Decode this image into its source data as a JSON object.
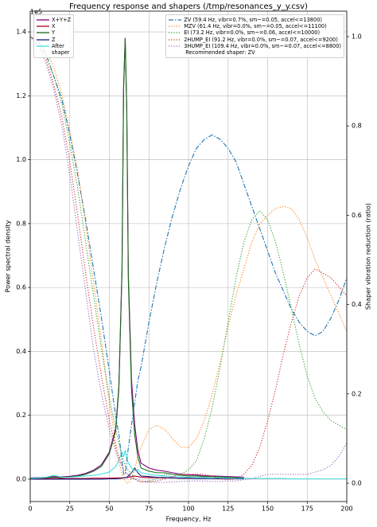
{
  "chart_data": {
    "type": "line",
    "title": "Frequency response and shapers (/tmp/resonances_y_y.csv)",
    "xlabel": "Frequency, Hz",
    "ylabel": "Power spectral density",
    "y2label": "Shaper vibration reduction (ratio)",
    "y_offset_label": "1e5",
    "recommended": "Recommended shaper: ZV",
    "legend": "upper left",
    "legend2": "upper right",
    "grid": true,
    "xlim": [
      0,
      200
    ],
    "xticks": [
      0,
      25,
      50,
      75,
      100,
      125,
      150,
      175,
      200
    ],
    "ylim": [
      -0.07,
      1.465
    ],
    "yticks": [
      {
        "value": 0,
        "label": "0.0"
      },
      0.2,
      0.4,
      0.6,
      0.8,
      {
        "value": 1,
        "label": "1.0"
      },
      1.2,
      1.4
    ],
    "y2lim": [
      -0.041,
      1.057
    ],
    "y2ticks": [
      {
        "value": 0,
        "label": "0.0"
      },
      0.2,
      0.4,
      0.6,
      0.8,
      {
        "value": 1,
        "label": "1.0"
      }
    ],
    "x": [
      0,
      5,
      10,
      15,
      20,
      25,
      30,
      35,
      40,
      45,
      50,
      54,
      56,
      58,
      59,
      60,
      61,
      62,
      64,
      66,
      68,
      70,
      75,
      80,
      85,
      90,
      95,
      100,
      105,
      110,
      115,
      120,
      125,
      130,
      135,
      140,
      145,
      150,
      155,
      160,
      165,
      170,
      175,
      180,
      185,
      190,
      195,
      200
    ],
    "series": [
      {
        "name": "X+Y+Z",
        "color": "#800080",
        "linestyle": "solid",
        "axis": "y",
        "values": [
          0.004,
          0.005,
          0.006,
          0.008,
          0.007,
          0.009,
          0.012,
          0.018,
          0.028,
          0.045,
          0.085,
          0.16,
          0.29,
          0.66,
          1.23,
          1.38,
          1.16,
          0.64,
          0.31,
          0.17,
          0.09,
          0.05,
          0.035,
          0.028,
          0.025,
          0.02,
          0.016,
          0.014,
          0.013,
          0.011,
          0.01,
          0.009,
          0.008,
          0.007,
          0.006,
          null,
          null,
          null,
          null,
          null,
          null,
          null,
          null,
          null,
          null,
          null,
          null,
          null
        ]
      },
      {
        "name": "X",
        "color": "#b00020",
        "linestyle": "solid",
        "axis": "y",
        "values": [
          0.001,
          0.001,
          0.002,
          0.002,
          0.002,
          0.002,
          0.002,
          0.002,
          0.003,
          0.003,
          0.003,
          0.004,
          0.004,
          0.004,
          0.005,
          0.005,
          0.005,
          0.006,
          0.008,
          0.01,
          0.008,
          0.006,
          0.005,
          0.005,
          0.004,
          0.004,
          0.003,
          0.003,
          0.003,
          0.003,
          0.002,
          0.002,
          0.002,
          0.002,
          0.002,
          null,
          null,
          null,
          null,
          null,
          null,
          null,
          null,
          null,
          null,
          null,
          null,
          null
        ]
      },
      {
        "name": "Y",
        "color": "#1a6b1a",
        "linestyle": "solid",
        "axis": "y",
        "values": [
          0.003,
          0.004,
          0.005,
          0.006,
          0.005,
          0.007,
          0.01,
          0.015,
          0.025,
          0.04,
          0.08,
          0.15,
          0.28,
          0.65,
          1.22,
          1.38,
          1.15,
          0.62,
          0.28,
          0.14,
          0.07,
          0.035,
          0.025,
          0.02,
          0.02,
          0.015,
          0.012,
          0.01,
          0.01,
          0.008,
          0.008,
          0.007,
          0.006,
          0.005,
          0.004,
          null,
          null,
          null,
          null,
          null,
          null,
          null,
          null,
          null,
          null,
          null,
          null,
          null
        ]
      },
      {
        "name": "Z",
        "color": "#1a1a80",
        "linestyle": "solid",
        "axis": "y",
        "values": [
          0,
          0,
          0,
          0,
          0,
          0,
          0,
          0,
          0,
          0,
          0.001,
          0.001,
          0.002,
          0.003,
          0.004,
          0.005,
          0.006,
          0.01,
          0.02,
          0.035,
          0.02,
          0.01,
          0.008,
          0.006,
          0.005,
          0.004,
          0.003,
          0.003,
          0.002,
          0.002,
          0.002,
          0.001,
          0.001,
          0.001,
          0.001,
          null,
          null,
          null,
          null,
          null,
          null,
          null,
          null,
          null,
          null,
          null,
          null,
          null
        ]
      },
      {
        "name": "After\nshaper",
        "color": "#40e0e0",
        "linestyle": "solid",
        "axis": "y",
        "values": [
          0.002,
          0.004,
          0.006,
          0.012,
          0.006,
          0.006,
          0.008,
          0.01,
          0.012,
          0.016,
          0.022,
          0.04,
          0.06,
          0.085,
          0.07,
          0.09,
          0.065,
          0.05,
          0.035,
          0.025,
          0.03,
          0.02,
          0.015,
          0.012,
          0.01,
          0.008,
          0.007,
          0.006,
          0.005,
          0.005,
          0.004,
          0.004,
          0.003,
          0.003,
          0.003,
          0.002,
          0.002,
          0.002,
          0.002,
          0.002,
          0.001,
          0.001,
          0.001,
          0.001,
          0.001,
          0.001,
          0.001,
          0.001
        ]
      },
      {
        "name": "ZV (59.4 Hz, vibr=0.7%, sm~=0.05, accel<=13800)",
        "color": "#1f77b4",
        "linestyle": "dashdot",
        "axis": "y2",
        "values": [
          1.0,
          0.99,
          0.96,
          0.91,
          0.86,
          0.78,
          0.69,
          0.59,
          0.48,
          0.37,
          0.25,
          0.15,
          0.11,
          0.05,
          0.02,
          0.02,
          0.05,
          0.08,
          0.13,
          0.18,
          0.23,
          0.26,
          0.36,
          0.45,
          0.53,
          0.6,
          0.66,
          0.71,
          0.75,
          0.77,
          0.78,
          0.77,
          0.75,
          0.72,
          0.67,
          0.62,
          0.57,
          0.52,
          0.47,
          0.43,
          0.39,
          0.36,
          0.34,
          0.33,
          0.34,
          0.37,
          0.41,
          0.46
        ]
      },
      {
        "name": "MZV (61.4 Hz, vibr=0.0%, sm~=0.05, accel<=11100)",
        "color": "#ff7f0e",
        "linestyle": "dotted",
        "axis": "y2",
        "values": [
          1.0,
          0.99,
          0.97,
          0.93,
          0.87,
          0.79,
          0.7,
          0.58,
          0.45,
          0.32,
          0.18,
          0.09,
          0.05,
          0.02,
          0.01,
          0.005,
          0,
          0,
          0.01,
          0.03,
          0.06,
          0.08,
          0.12,
          0.13,
          0.12,
          0.1,
          0.08,
          0.08,
          0.1,
          0.14,
          0.2,
          0.27,
          0.35,
          0.42,
          0.48,
          0.54,
          0.58,
          0.6,
          0.615,
          0.62,
          0.615,
          0.59,
          0.55,
          0.5,
          0.46,
          0.42,
          0.38,
          0.34
        ]
      },
      {
        "name": "EI (73.2 Hz, vibr=0.0%, sm~=0.06, accel<=10000)",
        "color": "#2ca02c",
        "linestyle": "dotted",
        "axis": "y2",
        "values": [
          1.0,
          0.98,
          0.96,
          0.91,
          0.85,
          0.76,
          0.66,
          0.54,
          0.42,
          0.3,
          0.19,
          0.12,
          0.09,
          0.06,
          0.05,
          0.04,
          0.03,
          0.03,
          0.02,
          0.01,
          0.005,
          0.003,
          0.005,
          0.01,
          0.02,
          0.02,
          0.02,
          0.03,
          0.05,
          0.1,
          0.17,
          0.26,
          0.36,
          0.46,
          0.54,
          0.59,
          0.61,
          0.59,
          0.54,
          0.47,
          0.39,
          0.31,
          0.24,
          0.19,
          0.16,
          0.14,
          0.13,
          0.12
        ]
      },
      {
        "name": "2HUMP_EI (91.2 Hz, vibr=0.0%, sm~=0.07, accel<=9200)",
        "color": "#d62728",
        "linestyle": "dotted",
        "axis": "y2",
        "values": [
          1.0,
          0.98,
          0.95,
          0.89,
          0.82,
          0.72,
          0.6,
          0.47,
          0.35,
          0.24,
          0.14,
          0.08,
          0.06,
          0.04,
          0.03,
          0.03,
          0.02,
          0.02,
          0.01,
          0.01,
          0.005,
          0.003,
          0.003,
          0.005,
          0.01,
          0.015,
          0.02,
          0.02,
          0.02,
          0.02,
          0.015,
          0.01,
          0.008,
          0.01,
          0.02,
          0.04,
          0.08,
          0.14,
          0.21,
          0.29,
          0.36,
          0.42,
          0.46,
          0.48,
          0.47,
          0.46,
          0.44,
          0.42
        ]
      },
      {
        "name": "3HUMP_EI (109.4 Hz, vibr=0.0%, sm~=0.07, accel<=8800)",
        "color": "#9467bd",
        "linestyle": "dotted",
        "axis": "y2",
        "values": [
          1.0,
          0.98,
          0.94,
          0.88,
          0.8,
          0.69,
          0.56,
          0.43,
          0.3,
          0.2,
          0.12,
          0.07,
          0.05,
          0.04,
          0.03,
          0.03,
          0.02,
          0.02,
          0.015,
          0.01,
          0.008,
          0.005,
          0.003,
          0.002,
          0.002,
          0.003,
          0.004,
          0.005,
          0.005,
          0.005,
          0.004,
          0.004,
          0.005,
          0.005,
          0.008,
          0.01,
          0.015,
          0.02,
          0.02,
          0.02,
          0.02,
          0.02,
          0.02,
          0.025,
          0.03,
          0.04,
          0.06,
          0.09
        ]
      }
    ]
  }
}
